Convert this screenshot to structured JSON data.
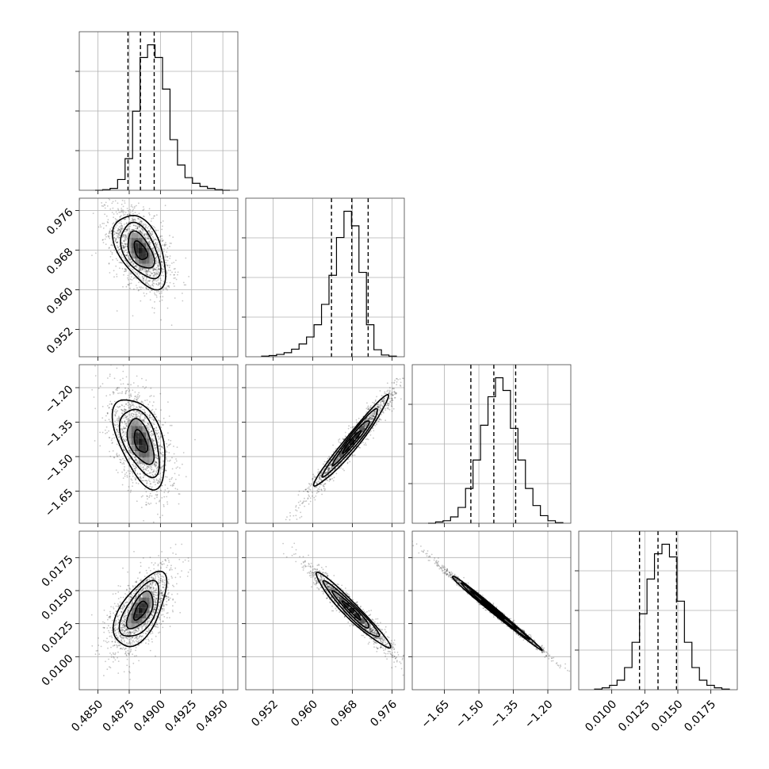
{
  "chart_data": {
    "type": "corner",
    "parameters": [
      {
        "name": "",
        "range": [
          0.4835,
          0.4962
        ],
        "median": 0.4884,
        "q16": 0.4874,
        "q84": 0.4895,
        "ticks": [
          0.485,
          0.4875,
          0.49,
          0.4925,
          0.495
        ],
        "tick_labels": [
          "0.4850",
          "0.4875",
          "0.4900",
          "0.4925",
          "0.4950"
        ],
        "hist": [
          0,
          1,
          3,
          17,
          50,
          125,
          210,
          230,
          210,
          160,
          80,
          40,
          20,
          11,
          6,
          3,
          1,
          0
        ]
      },
      {
        "name": "",
        "range": [
          0.9465,
          0.9785
        ],
        "median": 0.9679,
        "q16": 0.9638,
        "q84": 0.9712,
        "ticks": [
          0.952,
          0.96,
          0.968,
          0.976
        ],
        "tick_labels": [
          "0.952",
          "0.960",
          "0.968",
          "0.976"
        ],
        "hist": [
          1,
          2,
          4,
          7,
          13,
          22,
          34,
          55,
          90,
          140,
          205,
          250,
          225,
          145,
          55,
          12,
          3,
          1
        ]
      },
      {
        "name": "",
        "range": [
          -1.79,
          -1.1
        ],
        "median": -1.435,
        "q16": -1.535,
        "q84": -1.34,
        "ticks": [
          -1.65,
          -1.5,
          -1.35,
          -1.2
        ],
        "tick_labels": [
          "−1.65",
          "−1.50",
          "−1.35",
          "−1.20"
        ],
        "hist": [
          0,
          2,
          4,
          10,
          25,
          55,
          100,
          155,
          200,
          230,
          210,
          150,
          100,
          55,
          28,
          12,
          4,
          1
        ]
      },
      {
        "name": "",
        "range": [
          0.0075,
          0.0195
        ],
        "median": 0.0135,
        "q16": 0.0121,
        "q84": 0.0149,
        "ticks": [
          0.01,
          0.0125,
          0.015,
          0.0175
        ],
        "tick_labels": [
          "0.0100",
          "0.0125",
          "0.0150",
          "0.0175"
        ],
        "hist": [
          1,
          3,
          7,
          15,
          35,
          75,
          120,
          175,
          215,
          230,
          210,
          140,
          75,
          35,
          15,
          7,
          3,
          1
        ]
      }
    ],
    "correlations": [
      {
        "pair": [
          0,
          1
        ],
        "rho": -0.5
      },
      {
        "pair": [
          0,
          2
        ],
        "rho": -0.5
      },
      {
        "pair": [
          1,
          2
        ],
        "rho": 0.97
      },
      {
        "pair": [
          0,
          3
        ],
        "rho": 0.6
      },
      {
        "pair": [
          1,
          3
        ],
        "rho": -0.96
      },
      {
        "pair": [
          2,
          3
        ],
        "rho": -0.995
      }
    ],
    "contour_levels_sigma": [
      0.5,
      1.0,
      1.5,
      2.0
    ],
    "quantiles": [
      0.16,
      0.5,
      0.84
    ],
    "grid": true
  }
}
